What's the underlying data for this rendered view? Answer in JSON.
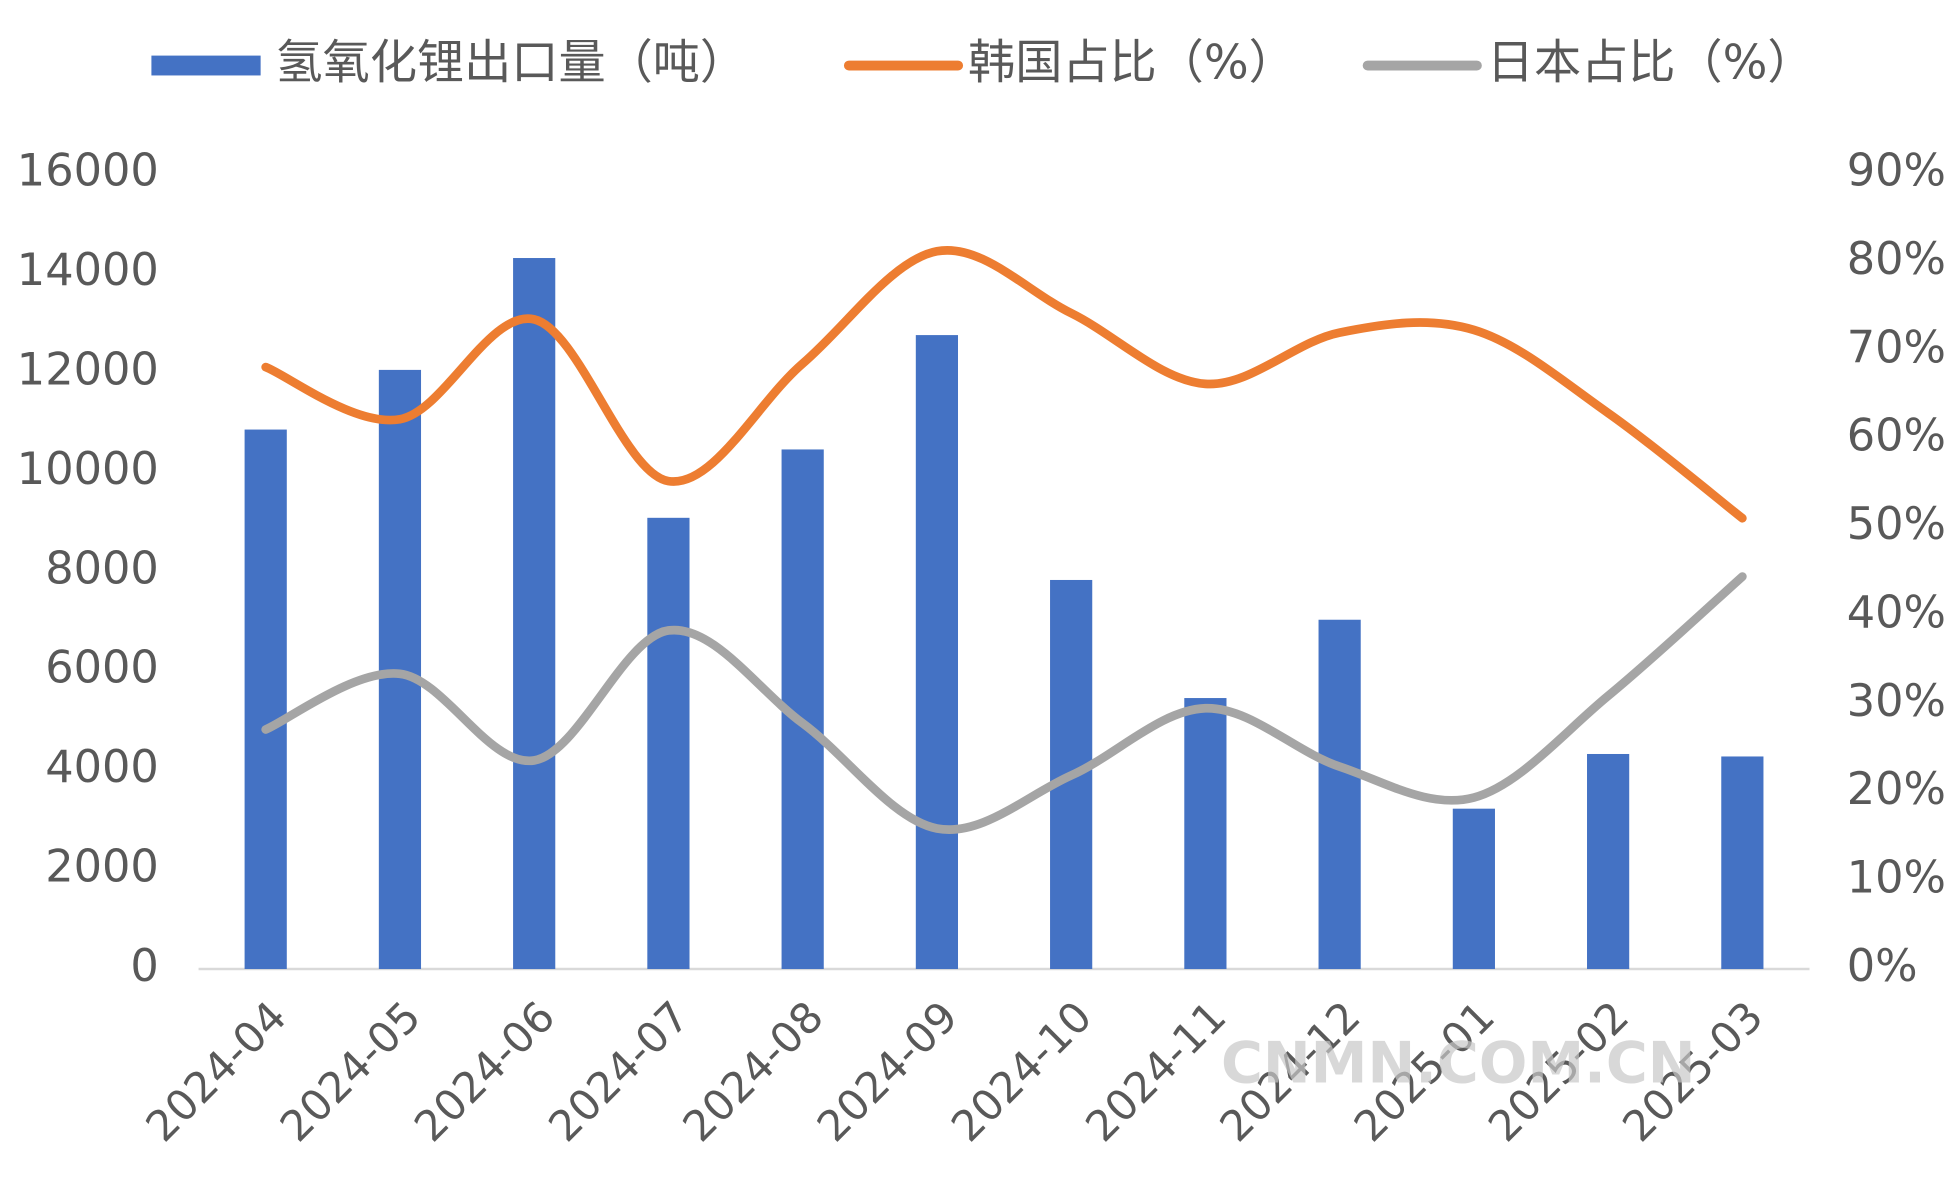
{
  "chart_data": {
    "type": "bar-line",
    "categories": [
      "2024-04",
      "2024-05",
      "2024-06",
      "2024-07",
      "2024-08",
      "2024-09",
      "2024-10",
      "2024-11",
      "2024-12",
      "2025-01",
      "2025-02",
      "2025-03"
    ],
    "series": [
      {
        "name": "氢氧化锂出口量（吨）",
        "type": "bar",
        "color": "#4472c4",
        "values": [
          10850,
          12050,
          14300,
          9075,
          10450,
          12750,
          7825,
          5450,
          7025,
          3225,
          4325,
          4275
        ]
      },
      {
        "name": "韩国占比（%）",
        "type": "line",
        "axis": "y2",
        "color": "#ed7d31",
        "values": [
          68.1,
          62.2,
          73.5,
          55.2,
          68.5,
          81.2,
          74.2,
          66.2,
          72,
          72.3,
          62.9,
          51
        ]
      },
      {
        "name": "日本占比（%）",
        "type": "line",
        "axis": "y2",
        "color": "#a5a5a5",
        "values": [
          27.1,
          33.4,
          23.6,
          38.3,
          27.8,
          15.9,
          21.9,
          29.5,
          22.9,
          19.4,
          30.9,
          44.4
        ]
      }
    ],
    "ylim": [
      0,
      16000
    ],
    "yticks": [
      0,
      2000,
      4000,
      6000,
      8000,
      10000,
      12000,
      14000,
      16000
    ],
    "y2lim": [
      0,
      90
    ],
    "y2ticks": [
      {
        "value": 0,
        "label": "0%"
      },
      {
        "value": 10,
        "label": "10%"
      },
      {
        "value": 20,
        "label": "20%"
      },
      {
        "value": 30,
        "label": "30%"
      },
      {
        "value": 40,
        "label": "40%"
      },
      {
        "value": 50,
        "label": "50%"
      },
      {
        "value": 60,
        "label": "60%"
      },
      {
        "value": 70,
        "label": "70%"
      },
      {
        "value": 80,
        "label": "80%"
      },
      {
        "value": 90,
        "label": "90%"
      }
    ],
    "legend": "top",
    "smooth": true,
    "watermark": "CNMN.COM.CN"
  }
}
